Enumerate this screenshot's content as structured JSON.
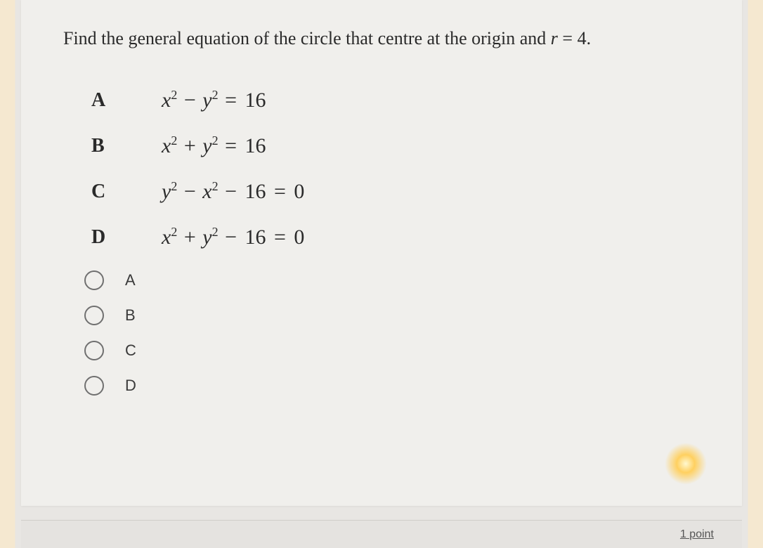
{
  "question": {
    "prompt_prefix": "Find the general equation of the circle that centre at the origin and ",
    "prompt_var": "r",
    "prompt_value": " = 4."
  },
  "options": [
    {
      "letter": "A",
      "eq_html": "<span class='italic-var'>x</span><span class='sup'>2</span> <span class='op'>−</span> <span class='italic-var'>y</span><span class='sup'>2</span> <span class='op'>=</span> <span class='op'>16</span>"
    },
    {
      "letter": "B",
      "eq_html": "<span class='italic-var'>x</span><span class='sup'>2</span> <span class='op'>+</span> <span class='italic-var'>y</span><span class='sup'>2</span> <span class='op'>=</span> <span class='op'>16</span>"
    },
    {
      "letter": "C",
      "eq_html": "<span class='italic-var'>y</span><span class='sup'>2</span> <span class='op'>−</span> <span class='italic-var'>x</span><span class='sup'>2</span> <span class='op'>−</span> <span class='op'>16</span> <span class='op'>=</span> <span class='op'>0</span>"
    },
    {
      "letter": "D",
      "eq_html": "<span class='italic-var'>x</span><span class='sup'>2</span> <span class='op'>+</span> <span class='italic-var'>y</span><span class='sup'>2</span> <span class='op'>−</span> <span class='op'>16</span> <span class='op'>=</span> <span class='op'>0</span>"
    }
  ],
  "radio_choices": [
    "A",
    "B",
    "C",
    "D"
  ],
  "footer": {
    "points": "1 point"
  },
  "styling": {
    "card_bg": "#f0efec",
    "text_color": "#2a2a2a",
    "radio_border": "#707070",
    "question_fontsize": 26,
    "option_letter_fontsize": 28,
    "equation_fontsize": 30,
    "radio_label_fontsize": 22
  }
}
